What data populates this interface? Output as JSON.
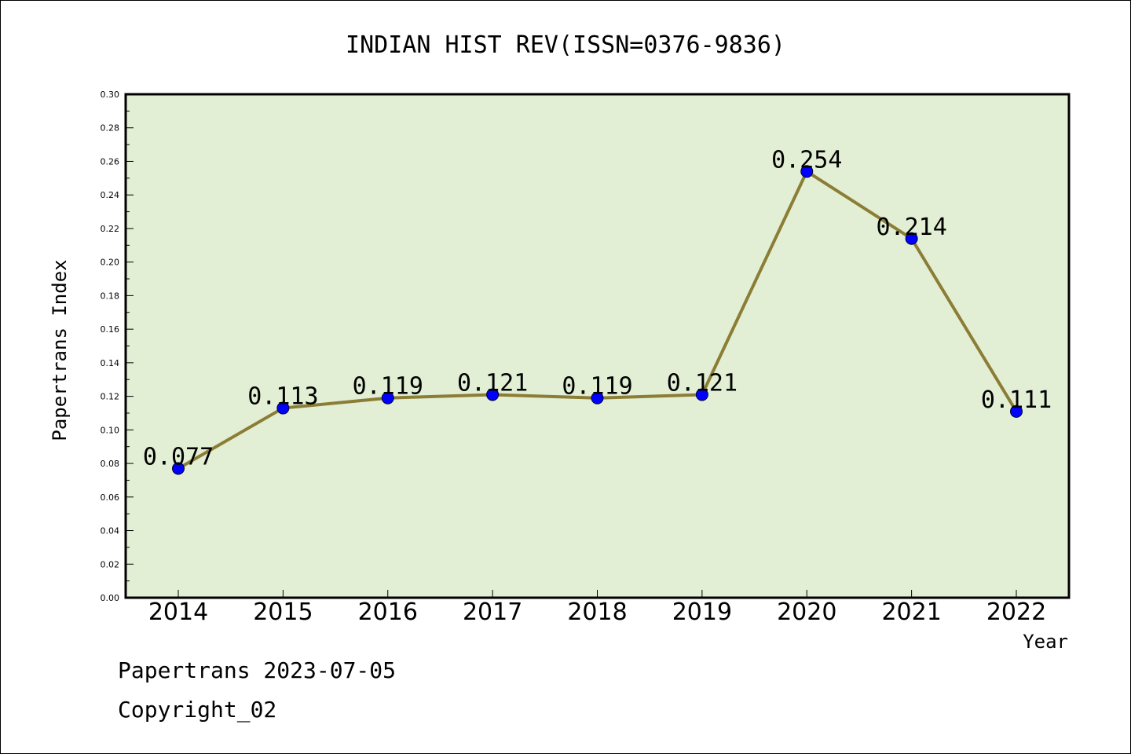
{
  "chart_data": {
    "type": "line",
    "title": "INDIAN HIST REV(ISSN=0376-9836)",
    "xlabel": "Year",
    "ylabel": "Papertrans Index",
    "categories": [
      "2014",
      "2015",
      "2016",
      "2017",
      "2018",
      "2019",
      "2020",
      "2021",
      "2022"
    ],
    "series": [
      {
        "values": [
          0.077,
          0.113,
          0.119,
          0.121,
          0.119,
          0.121,
          0.254,
          0.214,
          0.111
        ],
        "labels": [
          "0.077",
          "0.113",
          "0.119",
          "0.121",
          "0.119",
          "0.121",
          "0.254",
          "0.214",
          "0.111"
        ],
        "line_color": "#8b7d35",
        "marker_color": "#0000ff"
      }
    ],
    "ylim": [
      0,
      0.3
    ],
    "yticks": [
      "0.00",
      "0.02",
      "0.04",
      "0.06",
      "0.08",
      "0.10",
      "0.12",
      "0.14",
      "0.16",
      "0.18",
      "0.20",
      "0.22",
      "0.24",
      "0.26",
      "0.28",
      "0.30"
    ],
    "grid": false,
    "plot_background": "#e2efd4"
  },
  "footer": {
    "line1": "Papertrans 2023-07-05",
    "line2": "Copyright_02"
  }
}
